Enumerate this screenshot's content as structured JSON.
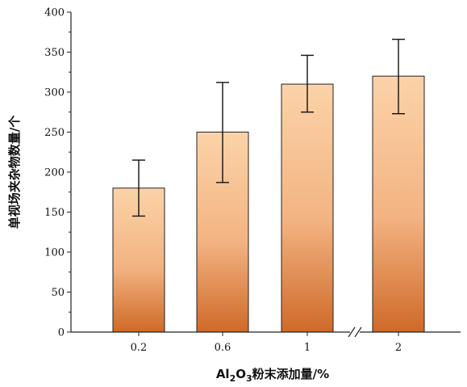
{
  "chart_data": {
    "type": "bar",
    "categories": [
      "0.2",
      "0.6",
      "1",
      "2"
    ],
    "values": [
      180,
      250,
      310,
      320
    ],
    "error_low": [
      145,
      187,
      275,
      273
    ],
    "error_high": [
      215,
      312,
      346,
      366
    ],
    "xlabel_parts": {
      "pre": "Al",
      "sub1": "2",
      "mid": "O",
      "sub2": "3",
      "post": "粉末添加量/%"
    },
    "ylabel": "单视场夹杂物数量/个",
    "ylim": [
      0,
      400
    ],
    "yticks": [
      "0",
      "50",
      "100",
      "150",
      "200",
      "250",
      "300",
      "350",
      "400"
    ],
    "axis_break_between": [
      "1",
      "2"
    ],
    "colors": {
      "bar_top": "#fbd3a8",
      "bar_mid": "#f3b382",
      "bar_bottom": "#cf6a28",
      "axis": "#222222"
    }
  }
}
